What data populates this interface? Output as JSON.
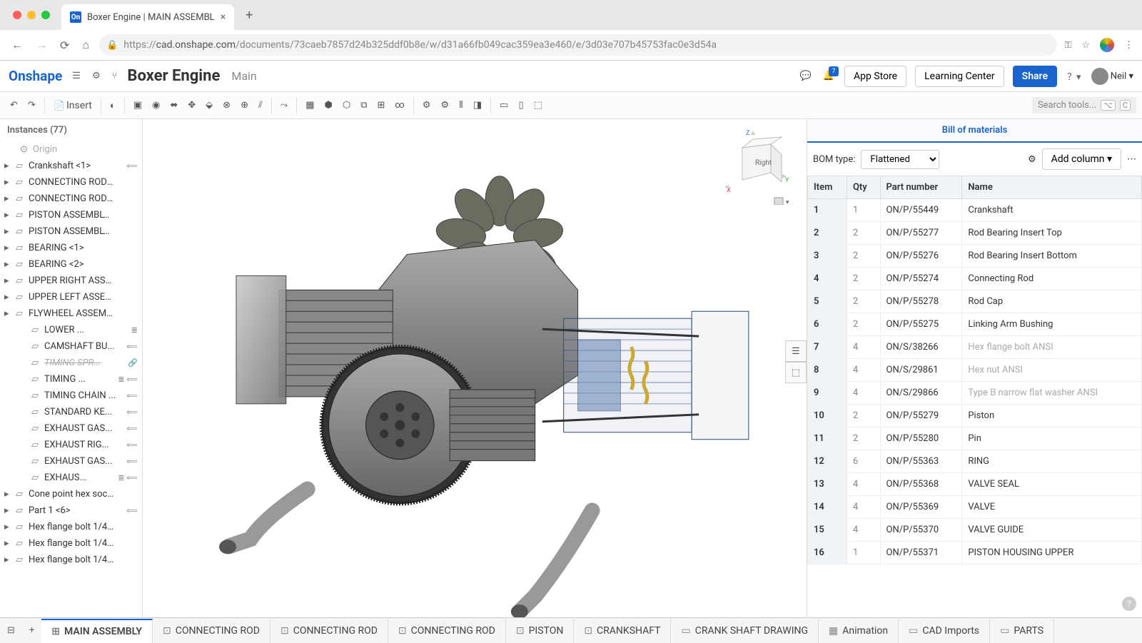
{
  "browser": {
    "tab_title": "Boxer Engine | MAIN ASSEMBL",
    "url_prefix": "https://",
    "url_host": "cad.onshape.com",
    "url_path": "/documents/73caeb7857d24b325ddf0b8e/w/d31a66fb049cac359ea3e460/e/3d03e707b45753fac0e3d54a"
  },
  "header": {
    "logo": "Onshape",
    "doc_title": "Boxer Engine",
    "doc_sub": "Main",
    "app_store": "App Store",
    "learning": "Learning Center",
    "share": "Share",
    "user_name": "Neil",
    "notif_badge": "7"
  },
  "toolbar": {
    "insert": "Insert",
    "search_placeholder": "Search tools...",
    "key1": "⌥",
    "key2": "C"
  },
  "instances": {
    "title": "Instances (77)",
    "origin": "Origin",
    "items": [
      {
        "t": "Crankshaft <1>",
        "caret": true,
        "trail": "⟸"
      },
      {
        "t": "CONNECTING ROD AS...",
        "caret": true
      },
      {
        "t": "CONNECTING ROD AS...",
        "caret": true
      },
      {
        "t": "PISTON ASSEMBLY <...",
        "caret": true
      },
      {
        "t": "PISTON ASSEMBLY <...",
        "caret": true
      },
      {
        "t": "BEARING <1>",
        "caret": true
      },
      {
        "t": "BEARING <2>",
        "caret": true
      },
      {
        "t": "UPPER RIGHT ASSEM...",
        "caret": true
      },
      {
        "t": "UPPER LEFT ASSEM...",
        "caret": true
      },
      {
        "t": "FLYWHEEL ASSEMBL...",
        "caret": true
      },
      {
        "t": "LOWER ...",
        "indent": true,
        "trail": "≣"
      },
      {
        "t": "CAMSHAFT BU...",
        "indent": true,
        "trail": "⟸"
      },
      {
        "t": "TIMING SPR...",
        "indent": true,
        "strike": true,
        "trail": "🔗"
      },
      {
        "t": "TIMING ...",
        "indent": true,
        "trail": "≣ ⟸"
      },
      {
        "t": "TIMING CHAIN ...",
        "indent": true,
        "trail": "⟸"
      },
      {
        "t": "STANDARD KE...",
        "indent": true,
        "trail": "⟸"
      },
      {
        "t": "EXHAUST GAS...",
        "indent": true,
        "trail": "⟸"
      },
      {
        "t": "EXHAUST RIG...",
        "indent": true,
        "trail": "⟸"
      },
      {
        "t": "EXHAUST GAS...",
        "indent": true,
        "trail": "⟸"
      },
      {
        "t": "EXHAUS...",
        "indent": true,
        "trail": "≣ ⟸"
      },
      {
        "t": "Cone point hex socket ...",
        "caret": true
      },
      {
        "t": "Part 1 <6>",
        "caret": true,
        "trail": "⟸"
      },
      {
        "t": "Hex flange bolt 1/4-28...",
        "caret": true
      },
      {
        "t": "Hex flange bolt 1/4-28...",
        "caret": true
      },
      {
        "t": "Hex flange bolt 1/4-28...",
        "caret": true
      }
    ]
  },
  "bom": {
    "title": "Bill of materials",
    "type_label": "BOM type:",
    "type_value": "Flattened",
    "add_col": "Add column",
    "columns": [
      "Item",
      "Qty",
      "Part number",
      "Name"
    ],
    "rows": [
      {
        "i": "1",
        "q": "1",
        "p": "ON/P/55449",
        "n": "Crankshaft"
      },
      {
        "i": "2",
        "q": "2",
        "p": "ON/P/55277",
        "n": "Rod Bearing Insert Top"
      },
      {
        "i": "3",
        "q": "2",
        "p": "ON/P/55276",
        "n": "Rod Bearing Insert Bottom"
      },
      {
        "i": "4",
        "q": "2",
        "p": "ON/P/55274",
        "n": "Connecting Rod"
      },
      {
        "i": "5",
        "q": "2",
        "p": "ON/P/55278",
        "n": "Rod Cap"
      },
      {
        "i": "6",
        "q": "2",
        "p": "ON/P/55275",
        "n": "Linking Arm Bushing"
      },
      {
        "i": "7",
        "q": "4",
        "p": "ON/S/38266",
        "n": "Hex flange bolt ANSI",
        "dim": true
      },
      {
        "i": "8",
        "q": "4",
        "p": "ON/S/29861",
        "n": "Hex nut ANSI",
        "dim": true
      },
      {
        "i": "9",
        "q": "4",
        "p": "ON/S/29866",
        "n": "Type B narrow flat washer ANSI",
        "dim": true
      },
      {
        "i": "10",
        "q": "2",
        "p": "ON/P/55279",
        "n": "Piston"
      },
      {
        "i": "11",
        "q": "2",
        "p": "ON/P/55280",
        "n": "Pin"
      },
      {
        "i": "12",
        "q": "6",
        "p": "ON/P/55363",
        "n": "RING"
      },
      {
        "i": "13",
        "q": "4",
        "p": "ON/P/55368",
        "n": "VALVE SEAL"
      },
      {
        "i": "14",
        "q": "4",
        "p": "ON/P/55369",
        "n": "VALVE"
      },
      {
        "i": "15",
        "q": "4",
        "p": "ON/P/55370",
        "n": "VALVE GUIDE"
      },
      {
        "i": "16",
        "q": "1",
        "p": "ON/P/55371",
        "n": "PISTON HOUSING UPPER"
      }
    ]
  },
  "tabs": [
    {
      "t": "MAIN ASSEMBLY",
      "ico": "⊞",
      "active": true
    },
    {
      "t": "CONNECTING ROD",
      "ico": "⊡"
    },
    {
      "t": "CONNECTING ROD",
      "ico": "⊡"
    },
    {
      "t": "CONNECTING ROD",
      "ico": "⊡"
    },
    {
      "t": "PISTON",
      "ico": "⊡"
    },
    {
      "t": "CRANKSHAFT",
      "ico": "⊡"
    },
    {
      "t": "CRANK SHAFT DRAWING",
      "ico": "▭"
    },
    {
      "t": "Animation",
      "ico": "▦"
    },
    {
      "t": "CAD Imports",
      "ico": "▭"
    },
    {
      "t": "PARTS",
      "ico": "▭"
    }
  ],
  "viewcube": {
    "front": "Right",
    "z": "Z",
    "y": "Y",
    "x": "X"
  },
  "colors": {
    "primary": "#1a63cc",
    "border": "#ddd",
    "muted": "#888"
  }
}
